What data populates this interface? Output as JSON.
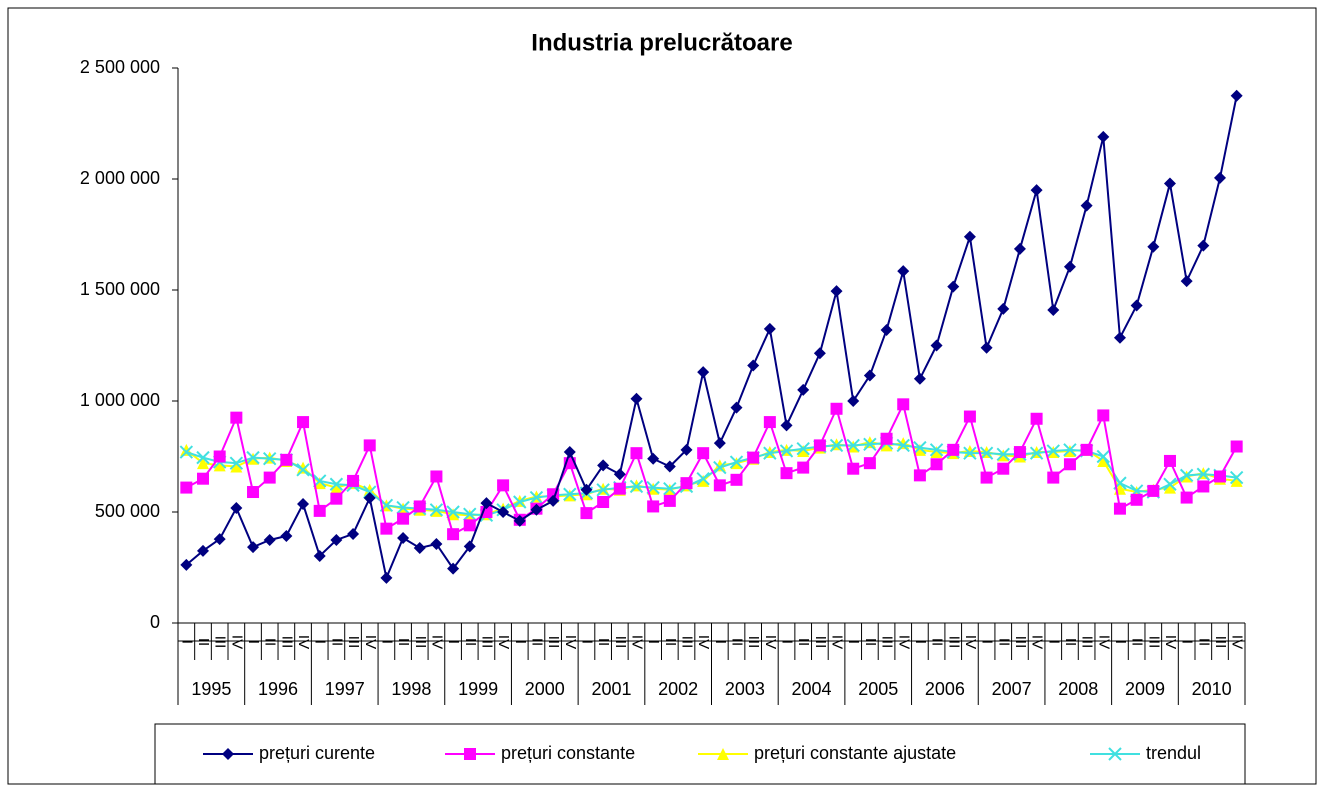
{
  "chart_data": {
    "type": "line",
    "title": "Industria prelucrătoare",
    "categories": [
      "I",
      "II",
      "III",
      "IV",
      "I",
      "II",
      "III",
      "IV",
      "I",
      "II",
      "III",
      "IV",
      "I",
      "II",
      "III",
      "IV",
      "I",
      "II",
      "III",
      "IV",
      "I",
      "II",
      "III",
      "IV",
      "I",
      "II",
      "III",
      "IV",
      "I",
      "II",
      "III",
      "IV",
      "I",
      "II",
      "III",
      "IV",
      "I",
      "II",
      "III",
      "IV",
      "I",
      "II",
      "III",
      "IV",
      "I",
      "II",
      "III",
      "IV",
      "I",
      "II",
      "III",
      "IV",
      "I",
      "II",
      "III",
      "IV",
      "I",
      "II",
      "III",
      "IV",
      "I",
      "II",
      "III",
      "IV"
    ],
    "years": [
      "1995",
      "1996",
      "1997",
      "1998",
      "1999",
      "2000",
      "2001",
      "2002",
      "2003",
      "2004",
      "2005",
      "2006",
      "2007",
      "2008",
      "2009",
      "2010"
    ],
    "ylim": [
      0,
      2500000
    ],
    "yticks": [
      0,
      {
        "value": 500000,
        "label": "500 000"
      },
      {
        "value": 1000000,
        "label": "1 000 000"
      },
      {
        "value": 1500000,
        "label": "1 500 000"
      },
      {
        "value": 2000000,
        "label": "2 000 000"
      },
      {
        "value": 2500000,
        "label": "2 500 000"
      }
    ],
    "legend": "bottom",
    "series": [
      {
        "name": "prețuri curente",
        "color": "#000080",
        "marker": "diamond",
        "values": [
          262000,
          325000,
          378000,
          518000,
          342000,
          374000,
          392000,
          536000,
          302000,
          374000,
          401000,
          563000,
          203000,
          383000,
          338000,
          356000,
          245000,
          345000,
          540000,
          500000,
          460000,
          510000,
          550000,
          770000,
          600000,
          710000,
          670000,
          1010000,
          740000,
          705000,
          780000,
          1130000,
          810000,
          970000,
          1160000,
          1325000,
          890000,
          1050000,
          1215000,
          1495000,
          1000000,
          1115000,
          1320000,
          1585000,
          1100000,
          1250000,
          1515000,
          1740000,
          1240000,
          1415000,
          1685000,
          1950000,
          1410000,
          1605000,
          1880000,
          2190000,
          1285000,
          1430000,
          1695000,
          1980000,
          1540000,
          1700000,
          2005000,
          2375000
        ]
      },
      {
        "name": "prețuri constante",
        "color": "#ff00ff",
        "marker": "square",
        "values": [
          610000,
          650000,
          750000,
          925000,
          590000,
          655000,
          735000,
          905000,
          505000,
          560000,
          640000,
          800000,
          425000,
          470000,
          525000,
          660000,
          400000,
          440000,
          500000,
          620000,
          465000,
          515000,
          580000,
          720000,
          495000,
          545000,
          605000,
          765000,
          525000,
          550000,
          630000,
          765000,
          620000,
          645000,
          745000,
          905000,
          675000,
          700000,
          800000,
          965000,
          695000,
          720000,
          830000,
          985000,
          665000,
          715000,
          780000,
          930000,
          655000,
          695000,
          770000,
          920000,
          655000,
          715000,
          780000,
          935000,
          515000,
          555000,
          595000,
          730000,
          565000,
          615000,
          660000,
          795000
        ]
      },
      {
        "name": "prețuri constante ajustate",
        "color": "#ffff00",
        "marker": "triangle",
        "values": [
          780000,
          720000,
          710000,
          705000,
          740000,
          745000,
          730000,
          700000,
          630000,
          610000,
          630000,
          600000,
          530000,
          515000,
          510000,
          505000,
          490000,
          485000,
          490000,
          515000,
          550000,
          570000,
          570000,
          575000,
          580000,
          605000,
          600000,
          620000,
          605000,
          600000,
          620000,
          640000,
          710000,
          720000,
          740000,
          770000,
          780000,
          775000,
          790000,
          805000,
          795000,
          815000,
          800000,
          810000,
          780000,
          770000,
          765000,
          775000,
          770000,
          755000,
          750000,
          770000,
          770000,
          775000,
          780000,
          730000,
          605000,
          590000,
          600000,
          610000,
          660000,
          675000,
          650000,
          640000
        ]
      },
      {
        "name": "trendul",
        "color": "#40e0e0",
        "marker": "x",
        "values": [
          770000,
          745000,
          725000,
          720000,
          745000,
          740000,
          735000,
          690000,
          640000,
          625000,
          620000,
          590000,
          530000,
          520000,
          515000,
          510000,
          500000,
          490000,
          485000,
          510000,
          545000,
          565000,
          575000,
          580000,
          585000,
          600000,
          610000,
          615000,
          610000,
          605000,
          615000,
          650000,
          700000,
          725000,
          745000,
          765000,
          775000,
          785000,
          795000,
          800000,
          800000,
          805000,
          810000,
          800000,
          790000,
          780000,
          770000,
          765000,
          765000,
          760000,
          760000,
          765000,
          775000,
          780000,
          775000,
          750000,
          630000,
          595000,
          590000,
          625000,
          665000,
          670000,
          665000,
          655000
        ]
      }
    ]
  }
}
